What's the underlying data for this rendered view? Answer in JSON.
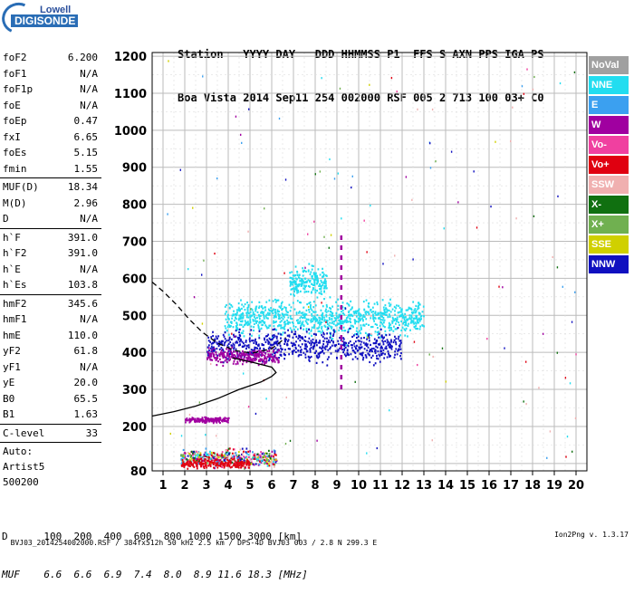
{
  "logo": {
    "line1": "Lowell",
    "line2": "DIGISONDE"
  },
  "header": {
    "labels": "Station   YYYY DAY   DDD HHMMSS P1  FFS S AXN PPS IGA PS",
    "values": "Boa Vista 2014 Sep11 254 002000 RSF 005 2 713 100 03+ C0"
  },
  "params_group1": [
    {
      "key": "foF2",
      "value": "6.200"
    },
    {
      "key": "foF1",
      "value": "N/A"
    },
    {
      "key": "foF1p",
      "value": "N/A"
    },
    {
      "key": "foE",
      "value": "N/A"
    },
    {
      "key": "foEp",
      "value": "0.47"
    },
    {
      "key": "fxI",
      "value": "6.65"
    },
    {
      "key": "foEs",
      "value": "5.15"
    },
    {
      "key": "fmin",
      "value": "1.55"
    }
  ],
  "params_group2": [
    {
      "key": "MUF(D)",
      "value": "18.34"
    },
    {
      "key": "M(D)",
      "value": "2.96"
    },
    {
      "key": "D",
      "value": "N/A"
    }
  ],
  "params_group3": [
    {
      "key": "h`F",
      "value": "391.0"
    },
    {
      "key": "h`F2",
      "value": "391.0"
    },
    {
      "key": "h`E",
      "value": "N/A"
    },
    {
      "key": "h`Es",
      "value": "103.8"
    }
  ],
  "params_group4": [
    {
      "key": "hmF2",
      "value": "345.6"
    },
    {
      "key": "hmF1",
      "value": "N/A"
    },
    {
      "key": "hmE",
      "value": "110.0"
    },
    {
      "key": "yF2",
      "value": "61.8"
    },
    {
      "key": "yF1",
      "value": "N/A"
    },
    {
      "key": "yE",
      "value": "20.0"
    },
    {
      "key": "B0",
      "value": "65.5"
    },
    {
      "key": "B1",
      "value": "1.63"
    }
  ],
  "params_group5": [
    {
      "key": "C-level",
      "value": "33"
    }
  ],
  "auto": {
    "line1": "Auto:",
    "line2": "Artist5",
    "line3": "500200"
  },
  "legend": [
    {
      "label": "NoVal",
      "color": "#a0a0a0"
    },
    {
      "label": "NNE",
      "color": "#22ddf0"
    },
    {
      "label": "E",
      "color": "#3ba0f0"
    },
    {
      "label": "W",
      "color": "#a000a0"
    },
    {
      "label": "Vo-",
      "color": "#f040a0"
    },
    {
      "label": "Vo+",
      "color": "#e00010"
    },
    {
      "label": "SSW",
      "color": "#f0b0b0"
    },
    {
      "label": "X-",
      "color": "#107010"
    },
    {
      "label": "X+",
      "color": "#70b050"
    },
    {
      "label": "SSE",
      "color": "#d0d000"
    },
    {
      "label": "NNW",
      "color": "#1010c0"
    }
  ],
  "bottom_table": {
    "row1": "D      100  200  400  600  800 1000 1500 3000 [km]",
    "row2": "MUF    6.6  6.6  6.9  7.4  8.0  8.9 11.6 18.3 [MHz]"
  },
  "footer": {
    "left": "BVJ03_2014254002000.RSF / 384fx512h 50 kHz 2.5 km / DPS-4D BVJ03 003 / 2.8 N 299.3 E",
    "right": "Ion2Png v. 1.3.17"
  },
  "chart_data": {
    "type": "scatter",
    "title": "",
    "xlabel": "",
    "ylabel": "",
    "xlim": [
      0.5,
      20.5
    ],
    "ylim": [
      80,
      1210
    ],
    "x_ticks": [
      1,
      2,
      3,
      4,
      5,
      6,
      7,
      8,
      9,
      10,
      11,
      12,
      13,
      14,
      15,
      16,
      17,
      18,
      19,
      20
    ],
    "y_ticks": [
      80,
      100,
      200,
      300,
      400,
      500,
      600,
      700,
      800,
      900,
      1000,
      1100,
      1200
    ],
    "y_tick_labels": [
      "80",
      "",
      "200",
      "300",
      "400",
      "500",
      "600",
      "700",
      "800",
      "900",
      "1000",
      "1100",
      "1200"
    ],
    "grid": true,
    "clusters": [
      {
        "name": "F2 trace (NNE)",
        "color": "#22ddf0",
        "freq_range": [
          3.8,
          13.0
        ],
        "height_range": [
          430,
          560
        ],
        "density": 900
      },
      {
        "name": "F2 trace upper (NNE)",
        "color": "#22ddf0",
        "freq_range": [
          6.8,
          8.5
        ],
        "height_range": [
          540,
          650
        ],
        "density": 200
      },
      {
        "name": "F2 trace (NNW)",
        "color": "#1010c0",
        "freq_range": [
          3.0,
          12.0
        ],
        "height_range": [
          360,
          480
        ],
        "density": 700
      },
      {
        "name": "F2 trace low (W)",
        "color": "#a000a0",
        "freq_range": [
          3.0,
          6.3
        ],
        "height_range": [
          360,
          420
        ],
        "density": 250
      },
      {
        "name": "Es trace (multi)",
        "color": "#22ddf0",
        "freq_range": [
          1.8,
          6.2
        ],
        "height_range": [
          84,
          150
        ],
        "density": 450
      },
      {
        "name": "Es trace (Vo+)",
        "color": "#e00010",
        "freq_range": [
          1.8,
          5.0
        ],
        "height_range": [
          84,
          120
        ],
        "density": 200
      },
      {
        "name": "Es 2nd hop",
        "color": "#a000a0",
        "freq_range": [
          2.0,
          4.0
        ],
        "height_range": [
          210,
          230
        ],
        "density": 160
      },
      {
        "name": "Sporadic noise",
        "color": "#a000a0",
        "freq_range": [
          1.0,
          20.0
        ],
        "height_range": [
          100,
          1200
        ],
        "density": 140
      }
    ],
    "profile_solid": [
      [
        0.5,
        228
      ],
      [
        1.5,
        240
      ],
      [
        2.5,
        255
      ],
      [
        3.5,
        275
      ],
      [
        4.5,
        300
      ],
      [
        5.5,
        320
      ],
      [
        6.0,
        335
      ],
      [
        6.2,
        345.6
      ],
      [
        6.0,
        360
      ],
      [
        5.2,
        372
      ],
      [
        4.2,
        385
      ]
    ],
    "profile_dashed": [
      [
        0.5,
        590
      ],
      [
        1.0,
        565
      ],
      [
        1.6,
        530
      ],
      [
        2.2,
        490
      ],
      [
        2.8,
        455
      ],
      [
        3.5,
        425
      ],
      [
        4.3,
        405
      ],
      [
        5.1,
        398
      ],
      [
        6.0,
        410
      ],
      [
        6.65,
        440
      ]
    ],
    "marker_line": {
      "freq": 9.2,
      "height_range": [
        300,
        720
      ],
      "color": "#a000a0"
    }
  }
}
